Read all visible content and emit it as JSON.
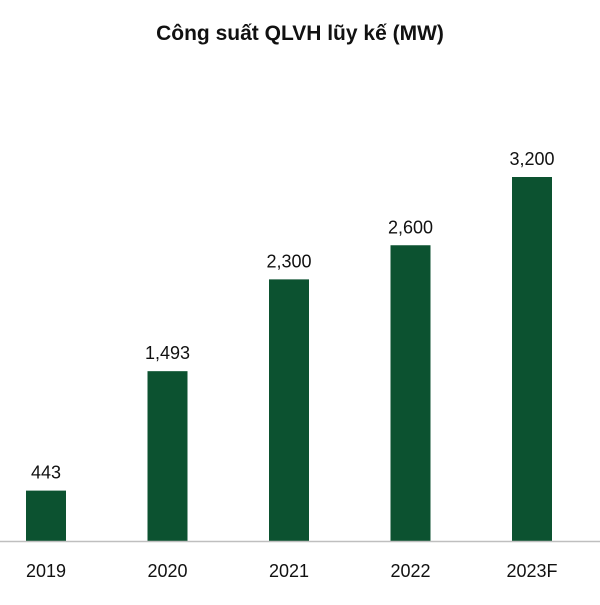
{
  "chart_data": {
    "type": "bar",
    "title": "Công suất QLVH lũy kế (MW)",
    "xlabel": "",
    "ylabel": "",
    "categories": [
      "2019",
      "2020",
      "2021",
      "2022",
      "2023F"
    ],
    "values": [
      443,
      1493,
      2300,
      2600,
      3200
    ],
    "value_labels": [
      "443",
      "1,493",
      "2,300",
      "2,600",
      "3,200"
    ],
    "ylim": [
      0,
      3200
    ],
    "grid": false,
    "legend": "none",
    "bar_color": "#0c5230",
    "axis_color": "#bfbfbf",
    "text_color": "#111111"
  }
}
